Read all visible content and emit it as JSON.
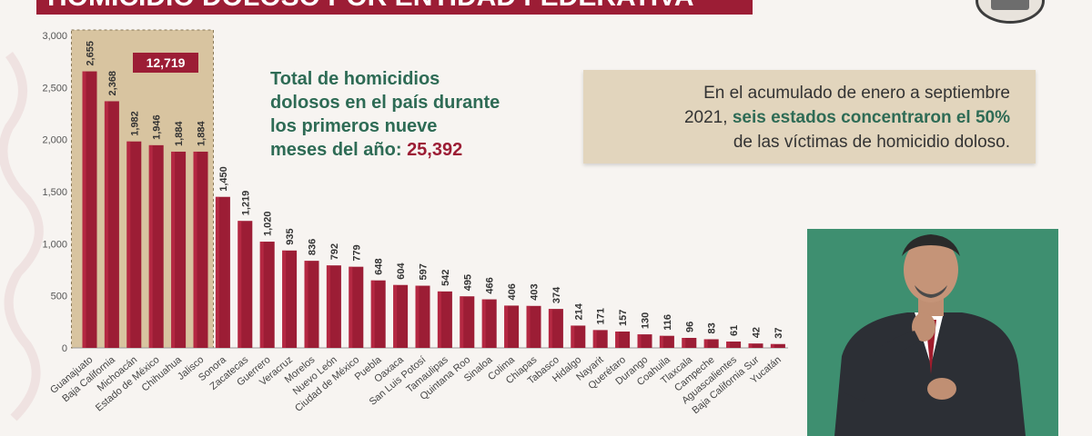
{
  "header": {
    "title": "HOMICIDIO DOLOSO POR ENTIDAD FEDERATIVA"
  },
  "summary": {
    "line1": "Total de homicidios",
    "line2": "dolosos en el país durante",
    "line3": "los primeros nueve",
    "line4_prefix": "meses del año: ",
    "total": "25,392"
  },
  "note": {
    "line1": "En el acumulado de enero a septiembre",
    "line2_prefix": "2021, ",
    "line2_highlight": "seis estados concentraron el 50%",
    "line3": "de las víctimas de homicidio doloso."
  },
  "highlight": {
    "label": "12,719"
  },
  "colors": {
    "bar": "#9c1d35",
    "accent": "#2e6b55",
    "highlight_fill": "#d8c4a0",
    "note_bg": "#e2d5bd"
  },
  "chart_data": {
    "type": "bar",
    "title": "",
    "xlabel": "",
    "ylabel": "",
    "ylim": [
      0,
      3000
    ],
    "yticks": [
      "0",
      "500",
      "1,000",
      "1,500",
      "2,000",
      "2,500",
      "3,000"
    ],
    "categories": [
      "Guanajuato",
      "Baja California",
      "Michoacán",
      "Estado de México",
      "Chihuahua",
      "Jalisco",
      "Sonora",
      "Zacatecas",
      "Guerrero",
      "Veracruz",
      "Morelos",
      "Nuevo León",
      "Ciudad de México",
      "Puebla",
      "Oaxaca",
      "San Luis Potosí",
      "Tamaulipas",
      "Quintana Roo",
      "Sinaloa",
      "Colima",
      "Chiapas",
      "Tabasco",
      "Hidalgo",
      "Nayarit",
      "Querétaro",
      "Durango",
      "Coahuila",
      "Tlaxcala",
      "Campeche",
      "Aguascalientes",
      "Baja California Sur",
      "Yucatán"
    ],
    "values": [
      2655,
      2368,
      1982,
      1946,
      1884,
      1884,
      1450,
      1219,
      1020,
      935,
      836,
      792,
      779,
      648,
      604,
      597,
      542,
      495,
      466,
      406,
      403,
      374,
      214,
      171,
      157,
      130,
      116,
      96,
      83,
      61,
      42,
      37
    ],
    "labels": [
      "2,655",
      "2,368",
      "1,982",
      "1,946",
      "1,884",
      "1,884",
      "1,450",
      "1,219",
      "1,020",
      "935",
      "836",
      "792",
      "779",
      "648",
      "604",
      "597",
      "542",
      "495",
      "466",
      "406",
      "403",
      "374",
      "214",
      "171",
      "157",
      "130",
      "116",
      "96",
      "83",
      "61",
      "42",
      "37"
    ],
    "highlighted_count": 6,
    "grid": false,
    "legend": "none"
  }
}
